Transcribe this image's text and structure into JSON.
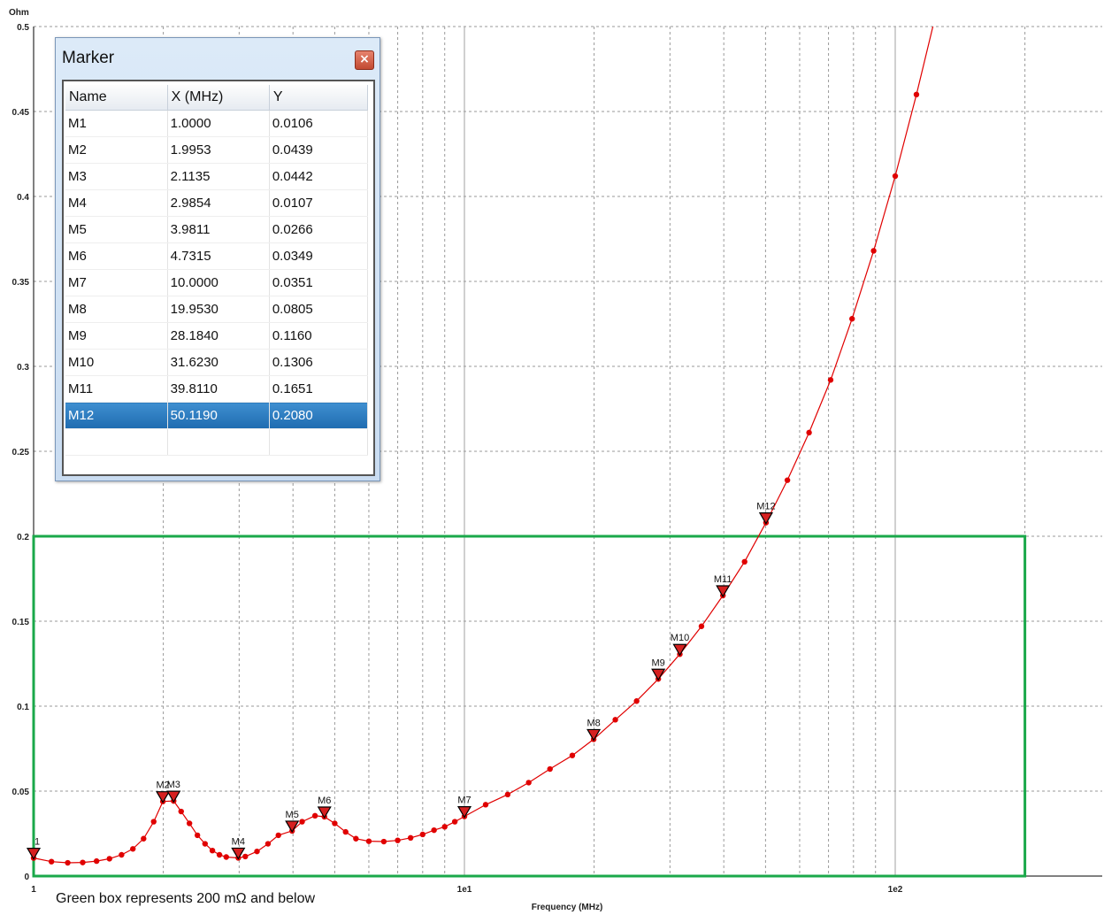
{
  "chart_data": {
    "type": "line",
    "ylabel": "Ohm",
    "xlabel": "Frequency (MHz)",
    "x_scale": "log",
    "xlim": [
      1,
      250
    ],
    "ylim": [
      0,
      0.5
    ],
    "y_ticks": [
      "0",
      "0.05",
      "0.1",
      "0.15",
      "0.2",
      "0.25",
      "0.3",
      "0.35",
      "0.4",
      "0.45",
      "0.5"
    ],
    "x_ticks": [
      {
        "value": 1,
        "label": "1"
      },
      {
        "value": 10,
        "label": "1e1"
      },
      {
        "value": 100,
        "label": "1e2"
      }
    ],
    "grid": true,
    "line_color": "#e00000",
    "box_color": "#1aa84a",
    "series": [
      {
        "x": [
          1.0,
          1.1,
          1.2,
          1.3,
          1.4,
          1.5,
          1.6,
          1.7,
          1.8,
          1.9,
          1.9953,
          2.1135,
          2.2,
          2.3,
          2.4,
          2.5,
          2.6,
          2.7,
          2.8,
          2.9854,
          3.1,
          3.3,
          3.5,
          3.7,
          3.9811,
          4.2,
          4.5,
          4.7315,
          5.0,
          5.3,
          5.6,
          6.0,
          6.5,
          7.0,
          7.5,
          8.0,
          8.5,
          9.0,
          9.5,
          10.0,
          11.2,
          12.6,
          14.1,
          15.8,
          17.8,
          19.953,
          22.4,
          25.1,
          28.184,
          31.623,
          35.5,
          39.811,
          44.7,
          50.119,
          56.2,
          63.1,
          70.8,
          79.4,
          89.1,
          100,
          112,
          125
        ],
        "y": [
          0.0106,
          0.0085,
          0.0078,
          0.008,
          0.0088,
          0.0102,
          0.0125,
          0.016,
          0.022,
          0.032,
          0.0439,
          0.0442,
          0.038,
          0.031,
          0.024,
          0.019,
          0.015,
          0.0125,
          0.0112,
          0.0107,
          0.0115,
          0.0145,
          0.019,
          0.024,
          0.0266,
          0.032,
          0.0355,
          0.0349,
          0.031,
          0.026,
          0.022,
          0.0205,
          0.0203,
          0.021,
          0.0225,
          0.0245,
          0.027,
          0.029,
          0.032,
          0.0351,
          0.042,
          0.048,
          0.055,
          0.063,
          0.071,
          0.0805,
          0.092,
          0.103,
          0.116,
          0.1306,
          0.147,
          0.1651,
          0.185,
          0.208,
          0.233,
          0.261,
          0.292,
          0.328,
          0.368,
          0.412,
          0.46,
          0.51
        ]
      }
    ],
    "markers": [
      {
        "name": "M1",
        "x": 1.0,
        "y": 0.0106,
        "label": "1"
      },
      {
        "name": "M2",
        "x": 1.9953,
        "y": 0.0439,
        "label": "M2"
      },
      {
        "name": "M3",
        "x": 2.1135,
        "y": 0.0442,
        "label": "M3"
      },
      {
        "name": "M4",
        "x": 2.9854,
        "y": 0.0107,
        "label": "M4"
      },
      {
        "name": "M5",
        "x": 3.9811,
        "y": 0.0266,
        "label": "M5"
      },
      {
        "name": "M6",
        "x": 4.7315,
        "y": 0.0349,
        "label": "M6"
      },
      {
        "name": "M7",
        "x": 10.0,
        "y": 0.0351,
        "label": "M7"
      },
      {
        "name": "M8",
        "x": 19.953,
        "y": 0.0805,
        "label": "M8"
      },
      {
        "name": "M9",
        "x": 28.184,
        "y": 0.116,
        "label": "M9"
      },
      {
        "name": "M10",
        "x": 31.623,
        "y": 0.1306,
        "label": "M10"
      },
      {
        "name": "M11",
        "x": 39.811,
        "y": 0.1651,
        "label": "M11"
      },
      {
        "name": "M12",
        "x": 50.119,
        "y": 0.208,
        "label": "M12"
      }
    ],
    "highlight_box": {
      "x_min": 1,
      "x_max": 200,
      "y_min": 0,
      "y_max": 0.2
    }
  },
  "note": "Green box represents 200 mΩ and below",
  "marker_dialog": {
    "title": "Marker",
    "close_label": "×",
    "columns": [
      "Name",
      "X (MHz)",
      "Y"
    ],
    "rows": [
      [
        "M1",
        "1.0000",
        "0.0106"
      ],
      [
        "M2",
        "1.9953",
        "0.0439"
      ],
      [
        "M3",
        "2.1135",
        "0.0442"
      ],
      [
        "M4",
        "2.9854",
        "0.0107"
      ],
      [
        "M5",
        "3.9811",
        "0.0266"
      ],
      [
        "M6",
        "4.7315",
        "0.0349"
      ],
      [
        "M7",
        "10.0000",
        "0.0351"
      ],
      [
        "M8",
        "19.9530",
        "0.0805"
      ],
      [
        "M9",
        "28.1840",
        "0.1160"
      ],
      [
        "M10",
        "31.6230",
        "0.1306"
      ],
      [
        "M11",
        "39.8110",
        "0.1651"
      ],
      [
        "M12",
        "50.1190",
        "0.2080"
      ]
    ],
    "selected_row": "M12"
  }
}
